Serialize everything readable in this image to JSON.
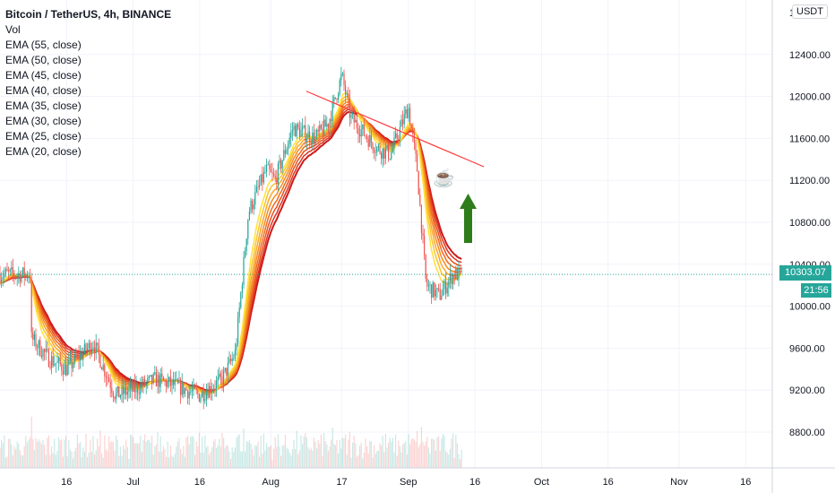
{
  "legend": {
    "title": "Bitcoin / TetherUS, 4h, BINANCE",
    "vol": "Vol",
    "emas": [
      "EMA (55, close)",
      "EMA (50, close)",
      "EMA (45, close)",
      "EMA (40, close)",
      "EMA (35, close)",
      "EMA (30, close)",
      "EMA (25, close)",
      "EMA (20, close)"
    ]
  },
  "currency": "USDT",
  "price_label": "10303.07",
  "countdown": "21:56",
  "colors": {
    "up": "#26a69a",
    "down": "#ef5350",
    "trendline": "#ff3b3b",
    "arrow": "#2e7d1a",
    "ema_ribbon": [
      "#cc1a1a",
      "#dd3322",
      "#e8501f",
      "#f06a1e",
      "#f58a22",
      "#f9a828",
      "#fcc330",
      "#ffe23a"
    ]
  },
  "icons": {
    "annotation": "coffee-cup-icon",
    "arrow": "up-arrow-icon"
  },
  "chart_data": {
    "type": "candlestick",
    "title": "Bitcoin / TetherUS, 4h, BINANCE",
    "currency": "USDT",
    "ylim": [
      8800,
      12800
    ],
    "y_ticks": [
      "8800.00",
      "9200.00",
      "9600.00",
      "10000.00",
      "10400.00",
      "10800.00",
      "11200.00",
      "11600.00",
      "12000.00",
      "12400.00"
    ],
    "x_ticks": [
      "16",
      "Jul",
      "16",
      "Aug",
      "17",
      "Sep",
      "16",
      "Oct",
      "16",
      "Nov",
      "16"
    ],
    "last_price": 10303.07,
    "price_path": [
      {
        "date": "2020-06-08",
        "price": 9700
      },
      {
        "date": "2020-06-12",
        "price": 9500
      },
      {
        "date": "2020-06-16",
        "price": 9400
      },
      {
        "date": "2020-06-22",
        "price": 9650
      },
      {
        "date": "2020-06-27",
        "price": 9150
      },
      {
        "date": "2020-07-01",
        "price": 9200
      },
      {
        "date": "2020-07-06",
        "price": 9300
      },
      {
        "date": "2020-07-10",
        "price": 9250
      },
      {
        "date": "2020-07-16",
        "price": 9150
      },
      {
        "date": "2020-07-21",
        "price": 9300
      },
      {
        "date": "2020-07-24",
        "price": 9550
      },
      {
        "date": "2020-07-27",
        "price": 10900
      },
      {
        "date": "2020-07-31",
        "price": 11300
      },
      {
        "date": "2020-08-02",
        "price": 11200
      },
      {
        "date": "2020-08-06",
        "price": 11700
      },
      {
        "date": "2020-08-11",
        "price": 11600
      },
      {
        "date": "2020-08-14",
        "price": 11750
      },
      {
        "date": "2020-08-17",
        "price": 12200
      },
      {
        "date": "2020-08-19",
        "price": 11800
      },
      {
        "date": "2020-08-25",
        "price": 11500
      },
      {
        "date": "2020-08-28",
        "price": 11450
      },
      {
        "date": "2020-09-01",
        "price": 11900
      },
      {
        "date": "2020-09-03",
        "price": 11300
      },
      {
        "date": "2020-09-05",
        "price": 10200
      },
      {
        "date": "2020-09-08",
        "price": 10100
      },
      {
        "date": "2020-09-11",
        "price": 10300
      },
      {
        "date": "2020-09-13",
        "price": 10303
      }
    ],
    "trendline": [
      {
        "date": "2020-08-09",
        "price": 12050
      },
      {
        "date": "2020-09-18",
        "price": 11330
      }
    ],
    "date_axis": {
      "first_date": "2020-06-01",
      "last_date": "2020-11-22"
    },
    "series": [
      {
        "name": "EMA (55, close)"
      },
      {
        "name": "EMA (50, close)"
      },
      {
        "name": "EMA (45, close)"
      },
      {
        "name": "EMA (40, close)"
      },
      {
        "name": "EMA (35, close)"
      },
      {
        "name": "EMA (30, close)"
      },
      {
        "name": "EMA (25, close)"
      },
      {
        "name": "EMA (20, close)"
      }
    ],
    "grid": true
  }
}
